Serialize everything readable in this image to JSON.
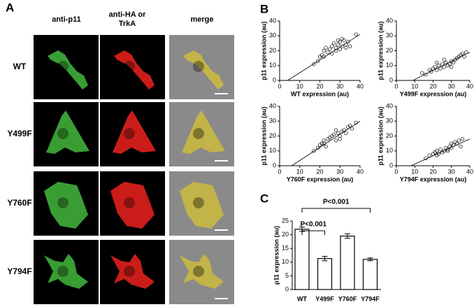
{
  "panels": {
    "a": "A",
    "b": "B",
    "c": "C"
  },
  "microscopy": {
    "columns": [
      "anti-p11",
      "anti-HA or TrkA",
      "merge"
    ],
    "rows": [
      "WT",
      "Y499F",
      "Y760F",
      "Y794F"
    ]
  },
  "chart_data": [
    {
      "type": "scatter",
      "xlabel": "WT expression (au)",
      "ylabel": "p11 expression (au)",
      "xlim": [
        0,
        40
      ],
      "ylim": [
        0,
        40
      ],
      "xticks": [
        0,
        10,
        20,
        30,
        40
      ],
      "yticks": [
        0,
        10,
        20,
        30,
        40
      ],
      "x": [
        17,
        19,
        20,
        21,
        22,
        23,
        24,
        25,
        26,
        27,
        28,
        29,
        30,
        31,
        32,
        33,
        34,
        30,
        29,
        33,
        35,
        38,
        28,
        31,
        26,
        22
      ],
      "values": [
        11,
        13,
        16,
        17,
        20,
        22,
        19,
        21,
        23,
        25,
        22,
        24,
        26,
        23,
        27,
        24,
        26,
        21,
        27,
        22,
        23,
        31,
        20,
        28,
        18,
        16
      ],
      "fit": {
        "x": [
          4,
          40
        ],
        "y": [
          0,
          31
        ]
      }
    },
    {
      "type": "scatter",
      "xlabel": "Y499F expression (au)",
      "ylabel": "p11 expression (au)",
      "xlim": [
        0,
        40
      ],
      "ylim": [
        0,
        40
      ],
      "xticks": [
        0,
        10,
        20,
        30,
        40
      ],
      "yticks": [
        0,
        10,
        20,
        30,
        40
      ],
      "x": [
        14,
        16,
        18,
        19,
        20,
        21,
        22,
        23,
        24,
        25,
        26,
        27,
        28,
        29,
        30,
        31,
        32,
        33,
        34,
        35,
        36,
        37,
        38,
        22,
        30,
        26
      ],
      "values": [
        5,
        4,
        7,
        6,
        8,
        9,
        7,
        10,
        8,
        11,
        9,
        12,
        10,
        11,
        13,
        12,
        14,
        15,
        16,
        17,
        18,
        16,
        19,
        12,
        9,
        14
      ],
      "fit": {
        "x": [
          9,
          40
        ],
        "y": [
          0,
          19
        ]
      }
    },
    {
      "type": "scatter",
      "xlabel": "Y760F expression (au)",
      "ylabel": "p11 expression (au)",
      "xlim": [
        0,
        40
      ],
      "ylim": [
        0,
        40
      ],
      "xticks": [
        0,
        10,
        20,
        30,
        40
      ],
      "yticks": [
        0,
        10,
        20,
        30,
        40
      ],
      "x": [
        17,
        19,
        20,
        21,
        22,
        23,
        24,
        25,
        26,
        27,
        28,
        29,
        30,
        31,
        32,
        33,
        34,
        35,
        36,
        38,
        22,
        28,
        30
      ],
      "values": [
        10,
        12,
        14,
        15,
        17,
        13,
        18,
        19,
        20,
        21,
        17,
        22,
        20,
        23,
        24,
        22,
        26,
        27,
        25,
        29,
        15,
        24,
        18
      ],
      "fit": {
        "x": [
          6,
          40
        ],
        "y": [
          0,
          30
        ]
      }
    },
    {
      "type": "scatter",
      "xlabel": "Y794F expression (au)",
      "ylabel": "p11 expression (au)",
      "xlim": [
        0,
        40
      ],
      "ylim": [
        0,
        40
      ],
      "xticks": [
        0,
        10,
        20,
        30,
        40
      ],
      "yticks": [
        0,
        10,
        20,
        30,
        40
      ],
      "x": [
        16,
        18,
        20,
        21,
        22,
        23,
        24,
        25,
        26,
        27,
        28,
        29,
        30,
        31,
        32,
        33,
        34,
        35,
        36,
        22,
        28,
        30
      ],
      "values": [
        5,
        7,
        8,
        9,
        10,
        8,
        11,
        9,
        10,
        12,
        11,
        13,
        12,
        14,
        16,
        15,
        17,
        13,
        18,
        7,
        10,
        15
      ],
      "fit": {
        "x": [
          8,
          40
        ],
        "y": [
          0,
          18
        ]
      }
    },
    {
      "type": "bar",
      "ylabel": "p11 expression (au)",
      "categories": [
        "WT",
        "Y499F",
        "Y760F",
        "Y794F"
      ],
      "values": [
        22,
        11.3,
        19.5,
        11
      ],
      "errors": [
        0.8,
        0.8,
        0.8,
        0.5
      ],
      "ylim": [
        0,
        25
      ],
      "yticks": [
        0,
        5,
        10,
        15,
        20,
        25
      ],
      "annotations": [
        "P<0.001",
        "P<0.001"
      ]
    }
  ]
}
